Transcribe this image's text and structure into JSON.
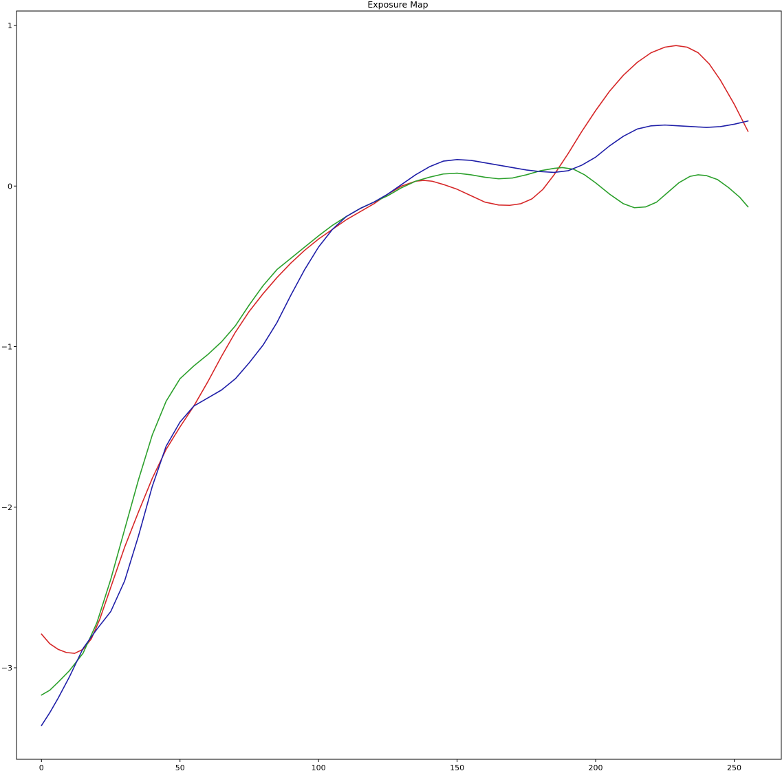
{
  "chart_data": {
    "type": "line",
    "title": "Exposure Map",
    "xlabel": "",
    "ylabel": "",
    "xlim": [
      -9,
      267
    ],
    "ylim": [
      -3.57,
      1.09
    ],
    "x_ticks": [
      0,
      50,
      100,
      150,
      200,
      250
    ],
    "y_ticks": [
      1,
      0,
      -1,
      -2,
      -3
    ],
    "grid": false,
    "legend": "none",
    "series": [
      {
        "color": "#d62728",
        "points": [
          [
            0,
            -2.79
          ],
          [
            3,
            -2.85
          ],
          [
            6,
            -2.885
          ],
          [
            9,
            -2.905
          ],
          [
            12,
            -2.91
          ],
          [
            15,
            -2.885
          ],
          [
            18,
            -2.82
          ],
          [
            21,
            -2.7
          ],
          [
            25,
            -2.5
          ],
          [
            30,
            -2.25
          ],
          [
            35,
            -2.03
          ],
          [
            40,
            -1.82
          ],
          [
            45,
            -1.64
          ],
          [
            50,
            -1.5
          ],
          [
            55,
            -1.37
          ],
          [
            60,
            -1.22
          ],
          [
            65,
            -1.06
          ],
          [
            70,
            -0.91
          ],
          [
            75,
            -0.78
          ],
          [
            80,
            -0.67
          ],
          [
            85,
            -0.57
          ],
          [
            90,
            -0.48
          ],
          [
            95,
            -0.4
          ],
          [
            100,
            -0.33
          ],
          [
            105,
            -0.27
          ],
          [
            110,
            -0.21
          ],
          [
            115,
            -0.16
          ],
          [
            120,
            -0.11
          ],
          [
            125,
            -0.05
          ],
          [
            130,
            0.0
          ],
          [
            135,
            0.03
          ],
          [
            138,
            0.035
          ],
          [
            141,
            0.03
          ],
          [
            145,
            0.01
          ],
          [
            150,
            -0.02
          ],
          [
            155,
            -0.06
          ],
          [
            160,
            -0.1
          ],
          [
            165,
            -0.118
          ],
          [
            169,
            -0.12
          ],
          [
            173,
            -0.11
          ],
          [
            177,
            -0.08
          ],
          [
            181,
            -0.02
          ],
          [
            185,
            0.07
          ],
          [
            190,
            0.2
          ],
          [
            195,
            0.34
          ],
          [
            200,
            0.47
          ],
          [
            205,
            0.59
          ],
          [
            210,
            0.69
          ],
          [
            215,
            0.77
          ],
          [
            220,
            0.83
          ],
          [
            225,
            0.865
          ],
          [
            229,
            0.875
          ],
          [
            233,
            0.865
          ],
          [
            237,
            0.83
          ],
          [
            241,
            0.76
          ],
          [
            245,
            0.66
          ],
          [
            250,
            0.51
          ],
          [
            255,
            0.34
          ]
        ]
      },
      {
        "color": "#2ca02c",
        "points": [
          [
            0,
            -3.17
          ],
          [
            3,
            -3.14
          ],
          [
            6,
            -3.09
          ],
          [
            10,
            -3.02
          ],
          [
            15,
            -2.91
          ],
          [
            20,
            -2.72
          ],
          [
            25,
            -2.45
          ],
          [
            30,
            -2.14
          ],
          [
            35,
            -1.83
          ],
          [
            40,
            -1.55
          ],
          [
            45,
            -1.34
          ],
          [
            50,
            -1.2
          ],
          [
            55,
            -1.12
          ],
          [
            60,
            -1.05
          ],
          [
            65,
            -0.97
          ],
          [
            70,
            -0.87
          ],
          [
            75,
            -0.74
          ],
          [
            80,
            -0.62
          ],
          [
            85,
            -0.52
          ],
          [
            90,
            -0.45
          ],
          [
            95,
            -0.38
          ],
          [
            100,
            -0.31
          ],
          [
            105,
            -0.245
          ],
          [
            110,
            -0.19
          ],
          [
            115,
            -0.14
          ],
          [
            120,
            -0.1
          ],
          [
            125,
            -0.06
          ],
          [
            130,
            -0.01
          ],
          [
            135,
            0.03
          ],
          [
            140,
            0.055
          ],
          [
            145,
            0.075
          ],
          [
            150,
            0.08
          ],
          [
            155,
            0.07
          ],
          [
            160,
            0.055
          ],
          [
            165,
            0.045
          ],
          [
            170,
            0.05
          ],
          [
            175,
            0.07
          ],
          [
            180,
            0.095
          ],
          [
            185,
            0.11
          ],
          [
            188,
            0.115
          ],
          [
            192,
            0.105
          ],
          [
            196,
            0.07
          ],
          [
            200,
            0.02
          ],
          [
            205,
            -0.05
          ],
          [
            210,
            -0.11
          ],
          [
            214,
            -0.135
          ],
          [
            218,
            -0.13
          ],
          [
            222,
            -0.1
          ],
          [
            226,
            -0.04
          ],
          [
            230,
            0.02
          ],
          [
            234,
            0.06
          ],
          [
            237,
            0.07
          ],
          [
            240,
            0.065
          ],
          [
            244,
            0.04
          ],
          [
            248,
            -0.01
          ],
          [
            252,
            -0.07
          ],
          [
            255,
            -0.13
          ]
        ]
      },
      {
        "color": "#1f1fa8",
        "points": [
          [
            0,
            -3.36
          ],
          [
            3,
            -3.28
          ],
          [
            6,
            -3.19
          ],
          [
            10,
            -3.06
          ],
          [
            15,
            -2.88
          ],
          [
            20,
            -2.76
          ],
          [
            25,
            -2.65
          ],
          [
            30,
            -2.46
          ],
          [
            35,
            -2.18
          ],
          [
            40,
            -1.87
          ],
          [
            45,
            -1.62
          ],
          [
            50,
            -1.47
          ],
          [
            55,
            -1.37
          ],
          [
            60,
            -1.32
          ],
          [
            65,
            -1.27
          ],
          [
            70,
            -1.2
          ],
          [
            75,
            -1.1
          ],
          [
            80,
            -0.99
          ],
          [
            85,
            -0.85
          ],
          [
            90,
            -0.68
          ],
          [
            95,
            -0.52
          ],
          [
            100,
            -0.38
          ],
          [
            105,
            -0.27
          ],
          [
            110,
            -0.19
          ],
          [
            115,
            -0.14
          ],
          [
            120,
            -0.1
          ],
          [
            125,
            -0.05
          ],
          [
            130,
            0.01
          ],
          [
            135,
            0.07
          ],
          [
            140,
            0.12
          ],
          [
            145,
            0.155
          ],
          [
            150,
            0.165
          ],
          [
            155,
            0.16
          ],
          [
            160,
            0.145
          ],
          [
            165,
            0.13
          ],
          [
            170,
            0.115
          ],
          [
            175,
            0.1
          ],
          [
            180,
            0.09
          ],
          [
            185,
            0.085
          ],
          [
            190,
            0.095
          ],
          [
            195,
            0.13
          ],
          [
            200,
            0.18
          ],
          [
            205,
            0.25
          ],
          [
            210,
            0.31
          ],
          [
            215,
            0.355
          ],
          [
            220,
            0.375
          ],
          [
            225,
            0.38
          ],
          [
            230,
            0.375
          ],
          [
            235,
            0.37
          ],
          [
            240,
            0.365
          ],
          [
            245,
            0.37
          ],
          [
            250,
            0.385
          ],
          [
            255,
            0.405
          ]
        ]
      }
    ]
  }
}
